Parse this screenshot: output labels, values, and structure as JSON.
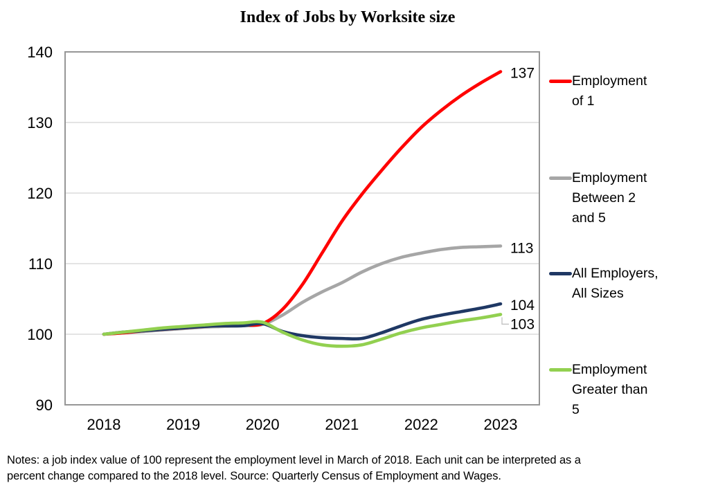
{
  "title": "Index of Jobs by Worksite size",
  "notes": {
    "lines": [
      "Notes: a job index value of 100 represent the employment level in March of 2018. Each unit can be interpreted as a",
      "percent change compared to the 2018 level. Source: Quarterly Census of Employment and Wages."
    ]
  },
  "colors": {
    "background": "#FFFFFF",
    "plot_border": "#969696",
    "gridline": "#DCDCDC",
    "tick_text": "#000000",
    "data_label_text": "#000000",
    "leader_line": "#BFBFBF",
    "red": "#FF0000",
    "gray": "#A6A6A6",
    "navy": "#1F3864",
    "green": "#92D050"
  },
  "legend": {
    "position": "right",
    "items": [
      {
        "lines": [
          "Employment",
          "of 1"
        ],
        "series_index": 0
      },
      {
        "lines": [
          "Employment",
          "Between 2",
          "and 5"
        ],
        "series_index": 1
      },
      {
        "lines": [
          "All Employers,",
          "All Sizes"
        ],
        "series_index": 2
      },
      {
        "lines": [
          "Employment",
          "Greater than",
          "5"
        ],
        "series_index": 3
      }
    ]
  },
  "chart_data": {
    "type": "line",
    "title": "Index of Jobs by Worksite size",
    "xlabel": "",
    "ylabel": "",
    "ylim": [
      90,
      140
    ],
    "y_ticks": [
      90,
      100,
      110,
      120,
      130,
      140
    ],
    "grid": "horizontal",
    "legend_position": "right",
    "x_tick_labels": [
      "2018",
      "2019",
      "2020",
      "2021",
      "2022",
      "2023"
    ],
    "x": [
      2018,
      2018.25,
      2018.5,
      2018.75,
      2019,
      2019.25,
      2019.5,
      2019.75,
      2020,
      2020.25,
      2020.5,
      2020.75,
      2021,
      2021.25,
      2021.5,
      2021.75,
      2022,
      2022.25,
      2022.5,
      2022.75,
      2023
    ],
    "series": [
      {
        "name": "Employment of 1",
        "color": "#FF0000",
        "end_label": "137",
        "end_label_dy": 2,
        "values": [
          100,
          100.2,
          100.5,
          100.7,
          100.9,
          101.1,
          101.3,
          101.3,
          101.5,
          103.5,
          107,
          111.5,
          116,
          119.8,
          123.2,
          126.4,
          129.3,
          131.7,
          133.8,
          135.6,
          137.2
        ]
      },
      {
        "name": "Employment Between 2 and 5",
        "color": "#A6A6A6",
        "end_label": "113",
        "end_label_dy": 3,
        "values": [
          100,
          100.2,
          100.4,
          100.6,
          100.8,
          101,
          101.1,
          101.2,
          101.4,
          102.7,
          104.5,
          106,
          107.3,
          108.8,
          110,
          110.9,
          111.5,
          112,
          112.3,
          112.4,
          112.5
        ]
      },
      {
        "name": "All Employers, All Sizes",
        "color": "#1F3864",
        "end_label": "104",
        "end_label_dy": 2,
        "values": [
          100,
          100.3,
          100.5,
          100.7,
          100.9,
          101.1,
          101.2,
          101.2,
          101.5,
          100.4,
          99.8,
          99.5,
          99.4,
          99.4,
          100.2,
          101.2,
          102.1,
          102.7,
          103.2,
          103.7,
          104.3
        ]
      },
      {
        "name": "Employment Greater than 5",
        "color": "#92D050",
        "end_label": "103",
        "end_label_dy": 14,
        "label_leader": true,
        "values": [
          100,
          100.3,
          100.6,
          100.9,
          101.1,
          101.3,
          101.5,
          101.6,
          101.7,
          100.3,
          99.2,
          98.5,
          98.3,
          98.5,
          99.3,
          100.2,
          100.9,
          101.4,
          101.9,
          102.3,
          102.8
        ]
      }
    ]
  }
}
